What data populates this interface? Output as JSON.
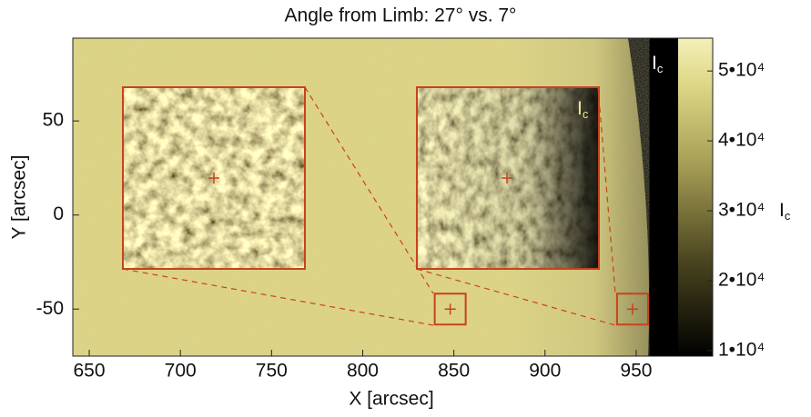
{
  "chart_data": {
    "type": "image",
    "title": "Angle from Limb: 27° vs. 7°",
    "x_label": "X [arcsec]",
    "y_label": "Y [arcsec]",
    "xlim": [
      641,
      973
    ],
    "xticks": [
      650,
      700,
      750,
      800,
      850,
      900,
      950
    ],
    "ylim": [
      -75,
      94
    ],
    "yticks": [
      -50,
      0,
      50
    ],
    "clim": [
      9200,
      54700
    ],
    "cticks": [
      {
        "value": 10000,
        "label": "1•10⁴"
      },
      {
        "value": 20000,
        "label": "2•10⁴"
      },
      {
        "value": 30000,
        "label": "3•10⁴"
      },
      {
        "value": 40000,
        "label": "4•10⁴"
      },
      {
        "value": 50000,
        "label": "5•10⁴"
      }
    ],
    "colorbar_label": "I",
    "colorbar_label_subscript": "c",
    "annotations": [
      {
        "text": "I",
        "subscript": "c"
      },
      {
        "text": "I",
        "subscript": "c"
      }
    ],
    "zoom_regions": {
      "x": [
        848,
        948
      ],
      "y": [
        -50,
        -50
      ]
    },
    "color": "#c8421e"
  }
}
